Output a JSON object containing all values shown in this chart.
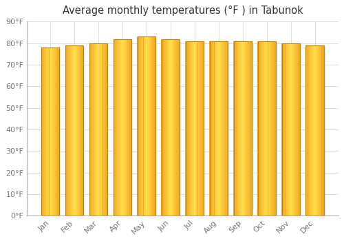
{
  "title": "Average monthly temperatures (°F ) in Tabunok",
  "months": [
    "Jan",
    "Feb",
    "Mar",
    "Apr",
    "May",
    "Jun",
    "Jul",
    "Aug",
    "Sep",
    "Oct",
    "Nov",
    "Dec"
  ],
  "values": [
    78.0,
    79.0,
    80.0,
    82.0,
    83.0,
    82.0,
    81.0,
    81.0,
    81.0,
    81.0,
    80.0,
    79.0
  ],
  "bar_color_center": "#FFE066",
  "bar_color_edge": "#F5A623",
  "bar_border_color": "#B8860B",
  "background_color": "#ffffff",
  "plot_bg_color": "#ffffff",
  "grid_color": "#dddddd",
  "ylim": [
    0,
    90
  ],
  "ytick_interval": 10,
  "title_fontsize": 10.5,
  "tick_fontsize": 8,
  "bar_width": 0.75
}
